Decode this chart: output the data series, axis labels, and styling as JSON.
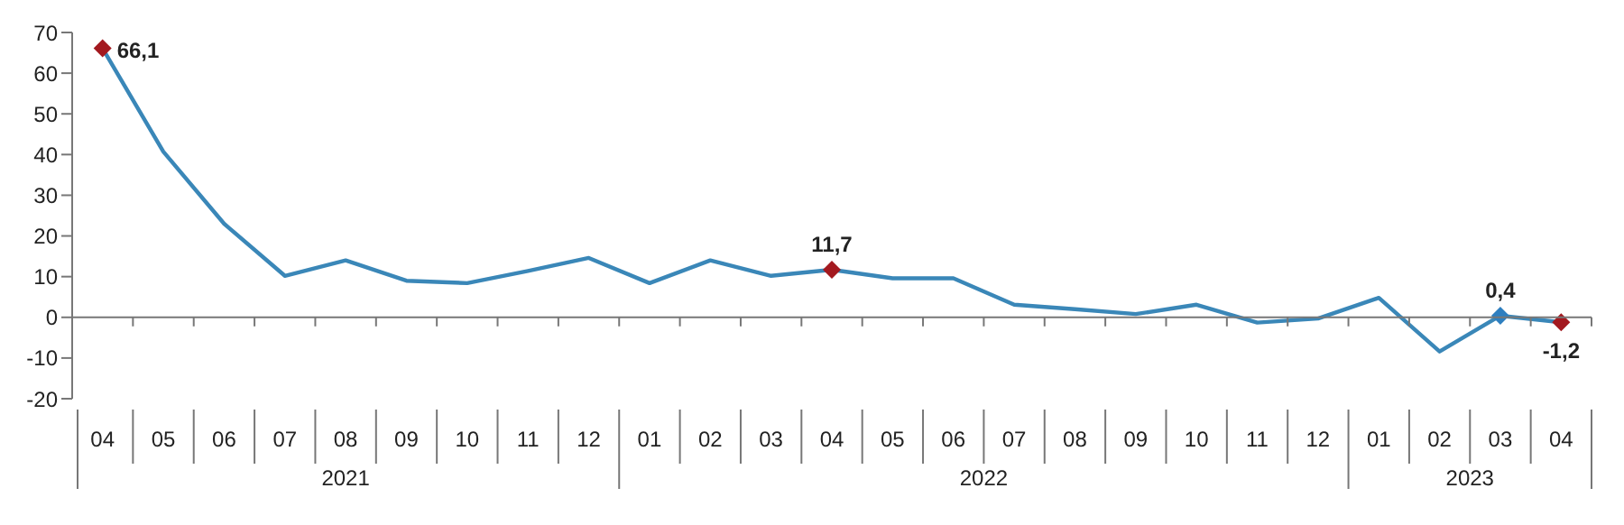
{
  "chart_data": {
    "type": "line",
    "categories": [
      "04",
      "05",
      "06",
      "07",
      "08",
      "09",
      "10",
      "11",
      "12",
      "01",
      "02",
      "03",
      "04",
      "05",
      "06",
      "07",
      "08",
      "09",
      "10",
      "11",
      "12",
      "01",
      "02",
      "03",
      "04"
    ],
    "annotations": [
      "2021",
      "2022",
      "2023"
    ],
    "series": [
      {
        "color": "#3a87b8",
        "values": [
          66.1,
          40.7,
          23,
          10.2,
          14,
          9,
          8.4,
          11.4,
          14.6,
          8.4,
          14,
          10.2,
          11.7,
          9.6,
          9.6,
          3.1,
          2,
          0.8,
          3.1,
          -1.3,
          -0.3,
          4.8,
          -8.4,
          0.4,
          -1.2
        ],
        "colors": [
          "#a3191f",
          null,
          null,
          null,
          null,
          null,
          null,
          null,
          null,
          null,
          null,
          null,
          "#a3191f",
          null,
          null,
          null,
          null,
          null,
          null,
          null,
          null,
          null,
          null,
          "#2e7fc0",
          "#a3191f"
        ],
        "value_labels": [
          "66,1",
          null,
          null,
          null,
          null,
          null,
          null,
          null,
          null,
          null,
          null,
          null,
          "11,7",
          null,
          null,
          null,
          null,
          null,
          null,
          null,
          null,
          null,
          null,
          "0,4",
          "-1,2"
        ]
      }
    ],
    "ylim": [
      -20,
      70
    ],
    "yticks": [
      -20,
      -10,
      0,
      10,
      20,
      30,
      40,
      50,
      60,
      70
    ]
  }
}
